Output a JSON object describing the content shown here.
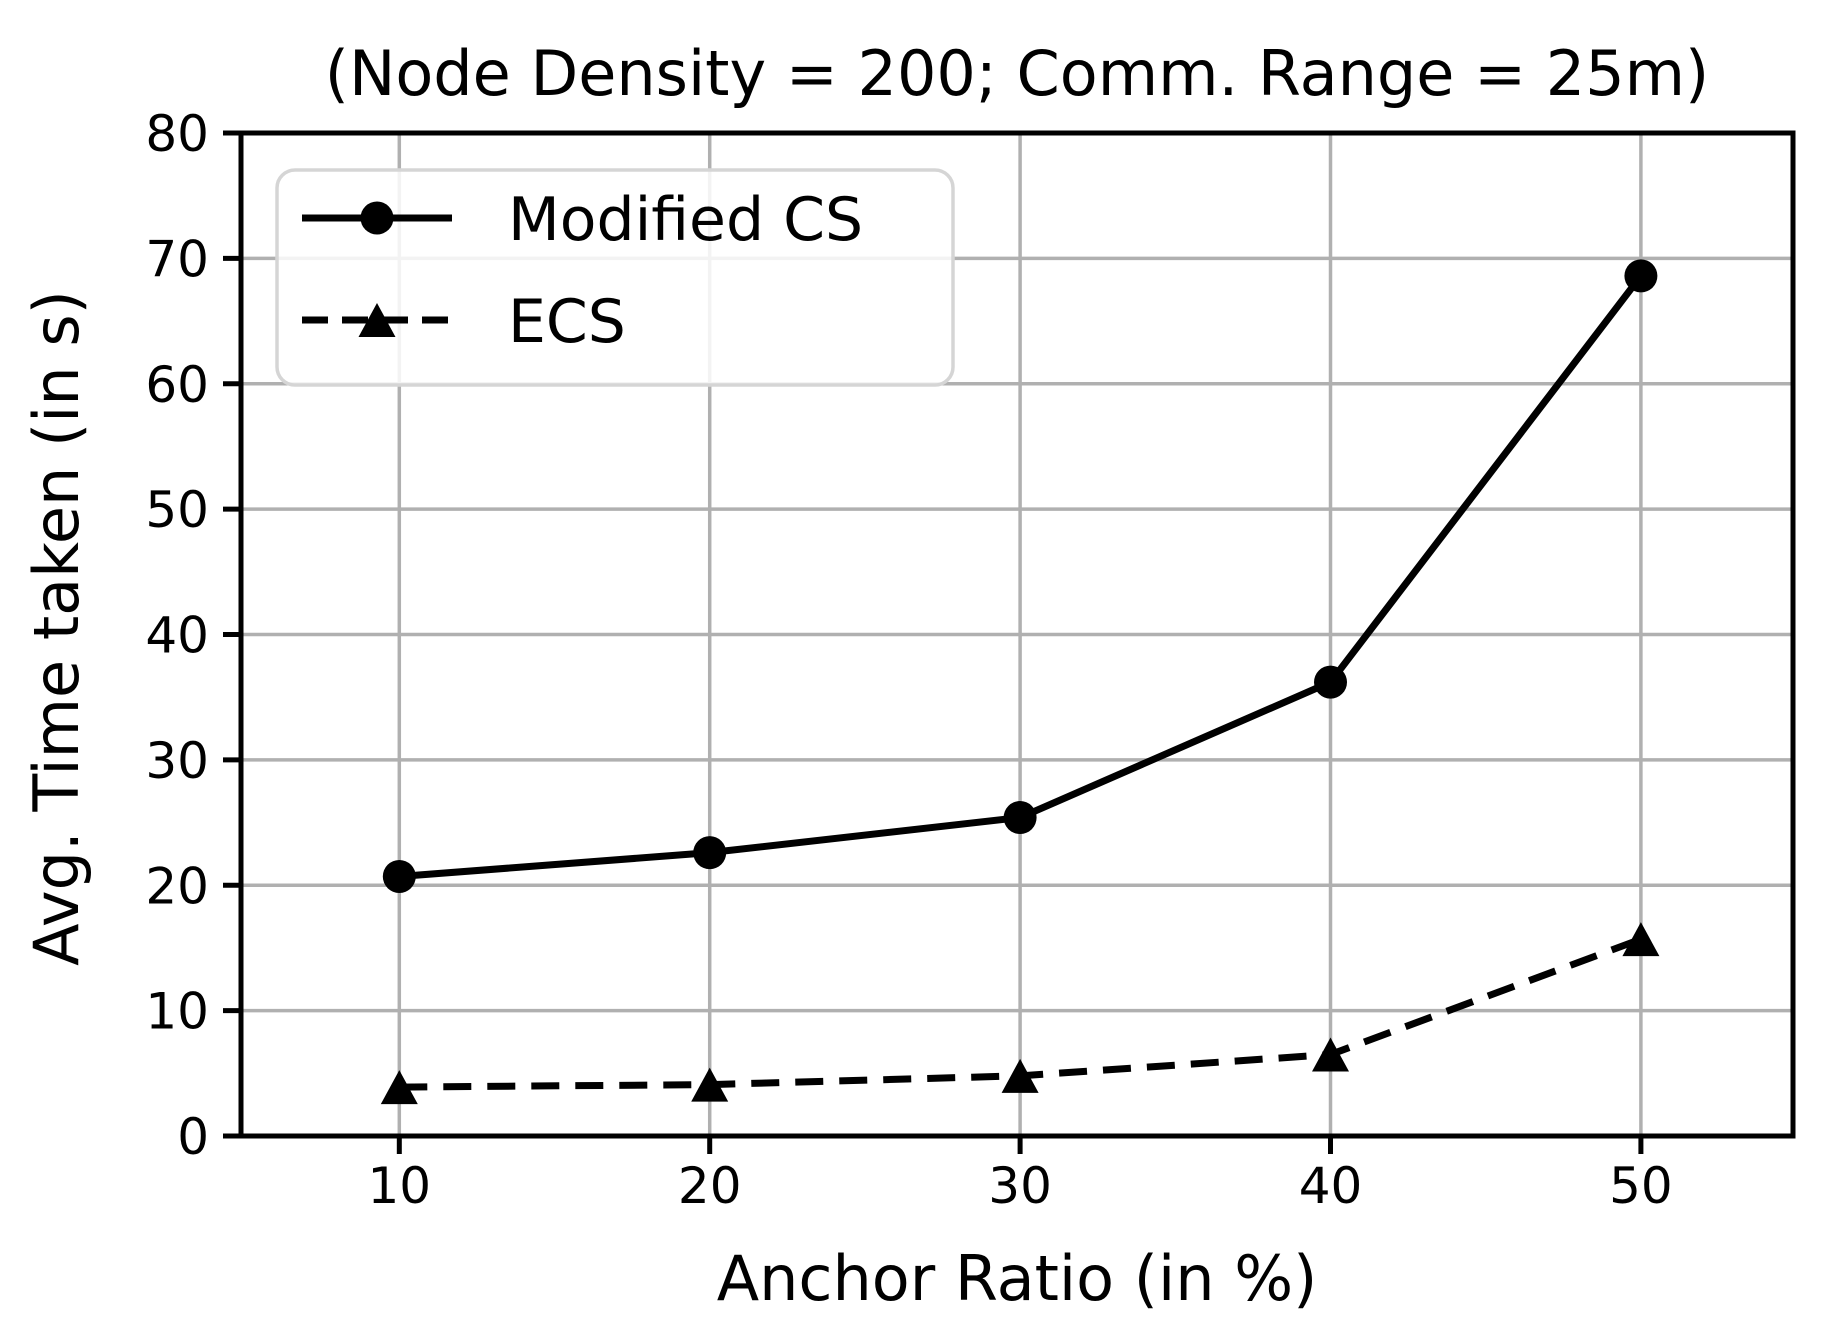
{
  "page": {
    "background": "#ffffff"
  },
  "chart_data": {
    "type": "line",
    "title": "(Node Density = 200; Comm. Range = 25m)",
    "xlabel": "Anchor Ratio (in %)",
    "ylabel": "Avg. Time taken (in s)",
    "x": [
      10,
      20,
      30,
      40,
      50
    ],
    "series": [
      {
        "name": "Modified CS",
        "values": [
          20.7,
          22.6,
          25.4,
          36.2,
          68.6
        ],
        "line_style": "solid",
        "marker": "circle",
        "color": "#000000"
      },
      {
        "name": "ECS",
        "values": [
          3.9,
          4.1,
          4.8,
          6.5,
          15.7
        ],
        "line_style": "dashed",
        "marker": "triangle",
        "color": "#000000"
      }
    ],
    "xlim": [
      4.9,
      54.9
    ],
    "ylim": [
      0,
      80
    ],
    "xticks": [
      10,
      20,
      30,
      40,
      50
    ],
    "yticks": [
      0,
      10,
      20,
      30,
      40,
      50,
      60,
      70,
      80
    ],
    "grid": true,
    "grid_color": "#b0b0b0",
    "axis_color": "#000000",
    "legend_position": "upper left"
  }
}
